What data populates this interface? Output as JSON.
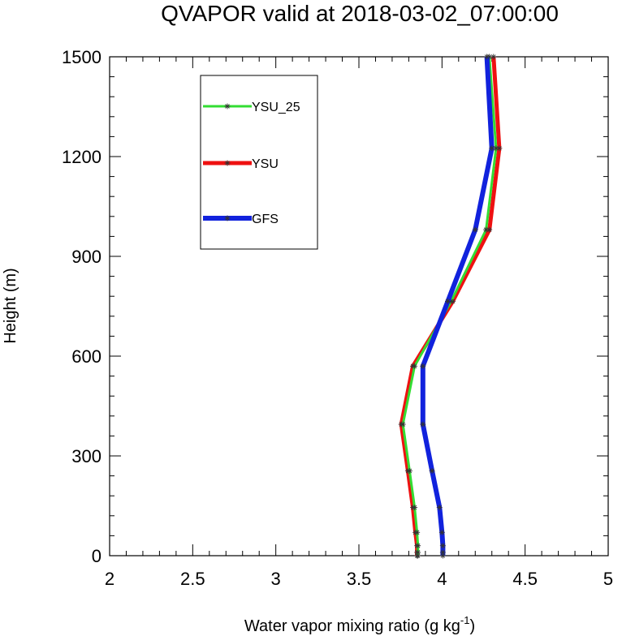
{
  "chart_data": {
    "type": "line",
    "title": "QVAPOR valid at 2018-03-02_07:00:00",
    "xlabel": "Water vapor mixing ratio (g kg",
    "xlabel_sup": "-1",
    "xlabel_end": ")",
    "ylabel": "Height (m)",
    "xlim": [
      2,
      5
    ],
    "ylim": [
      0,
      1500
    ],
    "xticks": [
      2,
      2.5,
      3,
      3.5,
      4,
      4.5,
      5
    ],
    "xtick_labels": [
      "2",
      "2.5",
      "3",
      "3.5",
      "4",
      "4.5",
      "5"
    ],
    "yticks": [
      0,
      300,
      600,
      900,
      1200,
      1500
    ],
    "ytick_labels": [
      "0",
      "300",
      "600",
      "900",
      "1200",
      "1500"
    ],
    "legend_position": "top-left",
    "grid": false,
    "series": [
      {
        "name": "YSU_25",
        "color": "#33dd33",
        "line_width": 3,
        "points": [
          [
            3.855,
            0
          ],
          [
            3.855,
            10
          ],
          [
            3.855,
            30
          ],
          [
            3.85,
            70
          ],
          [
            3.835,
            145
          ],
          [
            3.805,
            255
          ],
          [
            3.765,
            395
          ],
          [
            3.835,
            570
          ],
          [
            4.055,
            765
          ],
          [
            4.265,
            980
          ],
          [
            4.325,
            1225
          ],
          [
            4.285,
            1500
          ]
        ]
      },
      {
        "name": "YSU",
        "color": "#ee1111",
        "line_width": 5,
        "points": [
          [
            3.85,
            0
          ],
          [
            3.85,
            10
          ],
          [
            3.85,
            30
          ],
          [
            3.84,
            70
          ],
          [
            3.825,
            145
          ],
          [
            3.795,
            255
          ],
          [
            3.755,
            395
          ],
          [
            3.825,
            570
          ],
          [
            4.065,
            765
          ],
          [
            4.285,
            980
          ],
          [
            4.345,
            1225
          ],
          [
            4.31,
            1500
          ]
        ]
      },
      {
        "name": "GFS",
        "color": "#1122dd",
        "line_width": 6,
        "points": [
          [
            4.005,
            0
          ],
          [
            4.005,
            10
          ],
          [
            4.005,
            30
          ],
          [
            4.0,
            70
          ],
          [
            3.985,
            145
          ],
          [
            3.94,
            255
          ],
          [
            3.885,
            395
          ],
          [
            3.885,
            570
          ],
          [
            4.035,
            765
          ],
          [
            4.2,
            980
          ],
          [
            4.3,
            1225
          ],
          [
            4.27,
            1500
          ]
        ]
      }
    ]
  }
}
